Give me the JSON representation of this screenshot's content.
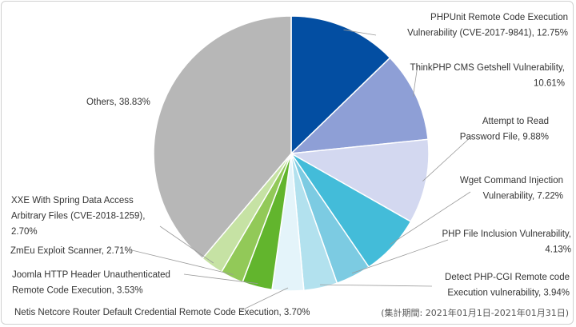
{
  "chart_data": {
    "type": "pie",
    "title": "",
    "period_note": "(集計期間: 2021年01月1日-2021年01月31日)",
    "slices": [
      {
        "label_lines": [
          "PHPUnit Remote Code Execution",
          "Vulnerability (CVE-2017-9841), 12.75%"
        ],
        "value": 12.75,
        "color": "#034ea2"
      },
      {
        "label_lines": [
          "ThinkPHP CMS Getshell Vulnerability,",
          "10.61%"
        ],
        "value": 10.61,
        "color": "#8e9fd6"
      },
      {
        "label_lines": [
          "Attempt to Read",
          "Password File, 9.88%"
        ],
        "value": 9.88,
        "color": "#d3d8f0"
      },
      {
        "label_lines": [
          "Wget Command Injection",
          "Vulnerability, 7.22%"
        ],
        "value": 7.22,
        "color": "#43bcd9"
      },
      {
        "label_lines": [
          "PHP File Inclusion Vulnerability,",
          "4.13%"
        ],
        "value": 4.13,
        "color": "#7ccbe2"
      },
      {
        "label_lines": [
          "Detect PHP-CGI Remote code",
          "Execution vulnerability, 3.94%"
        ],
        "value": 3.94,
        "color": "#b2e1ee"
      },
      {
        "label_lines": [
          "Netis Netcore Router Default Credential Remote Code Execution, 3.70%"
        ],
        "value": 3.7,
        "color": "#e4f4fa"
      },
      {
        "label_lines": [
          "Joomla HTTP Header Unauthenticated",
          "Remote Code Execution, 3.53%"
        ],
        "value": 3.53,
        "color": "#62b52d"
      },
      {
        "label_lines": [
          "ZmEu Exploit Scanner, 2.71%"
        ],
        "value": 2.71,
        "color": "#92c958"
      },
      {
        "label_lines": [
          "XXE With Spring Data Access",
          "Arbitrary Files (CVE-2018-1259),",
          "2.70%"
        ],
        "value": 2.7,
        "color": "#c6e2a4"
      },
      {
        "label_lines": [
          "Others, 38.83%"
        ],
        "value": 38.83,
        "color": "#b7b7b7"
      }
    ]
  }
}
